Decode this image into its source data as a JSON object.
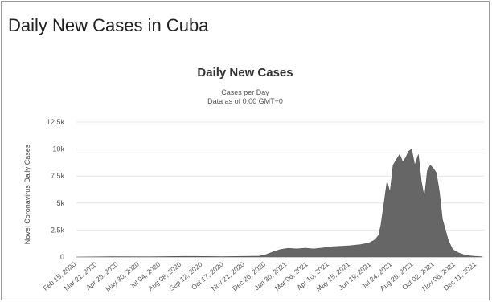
{
  "page": {
    "title": "Daily New Cases in Cuba"
  },
  "chart_data": {
    "type": "area",
    "title": "Daily New Cases",
    "subtitle": "Cases per Day",
    "subtitle2": "Data as of 0:00 GMT+0",
    "xlabel": "",
    "ylabel": "Novel Coronavirus Daily Cases",
    "ylim": [
      0,
      12500
    ],
    "yticks": [
      0,
      2500,
      5000,
      7500,
      10000,
      12500
    ],
    "ytick_labels": [
      "0",
      "2.5k",
      "5k",
      "7.5k",
      "10k",
      "12.5k"
    ],
    "xticks": [
      "Feb 15, 2020",
      "Mar 21, 2020",
      "Apr 25, 2020",
      "May 30, 2020",
      "Jul 04, 2020",
      "Aug 08, 2020",
      "Sep 12, 2020",
      "Oct 17, 2020",
      "Nov 21, 2020",
      "Dec 26, 2020",
      "Jan 30, 2021",
      "Mar 06, 2021",
      "Apr 10, 2021",
      "May 15, 2021",
      "Jun 19, 2021",
      "Jul 24, 2021",
      "Aug 28, 2021",
      "Oct 02, 2021",
      "Nov 06, 2021",
      "Dec 11, 2021"
    ],
    "grid": true,
    "color": "#666666",
    "series": [
      {
        "name": "",
        "x": [
          "2020-02-15",
          "2020-04-15",
          "2020-06-15",
          "2020-08-15",
          "2020-10-15",
          "2020-12-15",
          "2020-12-25",
          "2021-01-01",
          "2021-01-10",
          "2021-01-20",
          "2021-02-01",
          "2021-02-15",
          "2021-03-01",
          "2021-03-15",
          "2021-04-01",
          "2021-04-15",
          "2021-05-01",
          "2021-05-15",
          "2021-06-01",
          "2021-06-15",
          "2021-06-25",
          "2021-07-01",
          "2021-07-05",
          "2021-07-10",
          "2021-07-15",
          "2021-07-20",
          "2021-07-25",
          "2021-07-30",
          "2021-08-05",
          "2021-08-10",
          "2021-08-15",
          "2021-08-20",
          "2021-08-25",
          "2021-08-30",
          "2021-09-05",
          "2021-09-10",
          "2021-09-15",
          "2021-09-20",
          "2021-09-25",
          "2021-09-30",
          "2021-10-05",
          "2021-10-10",
          "2021-10-15",
          "2021-10-20",
          "2021-10-25",
          "2021-11-01",
          "2021-11-10",
          "2021-11-20",
          "2021-12-01",
          "2021-12-11",
          "2021-12-20"
        ],
        "values": [
          0,
          40,
          20,
          60,
          40,
          80,
          200,
          350,
          550,
          700,
          800,
          750,
          820,
          750,
          850,
          950,
          1000,
          1050,
          1150,
          1300,
          1600,
          2000,
          3000,
          5000,
          7000,
          6000,
          8500,
          9000,
          9500,
          8800,
          9200,
          9800,
          10000,
          8500,
          9500,
          7000,
          5500,
          8000,
          8500,
          8200,
          7800,
          6000,
          3500,
          2500,
          1500,
          700,
          400,
          200,
          100,
          50,
          20
        ]
      }
    ]
  }
}
